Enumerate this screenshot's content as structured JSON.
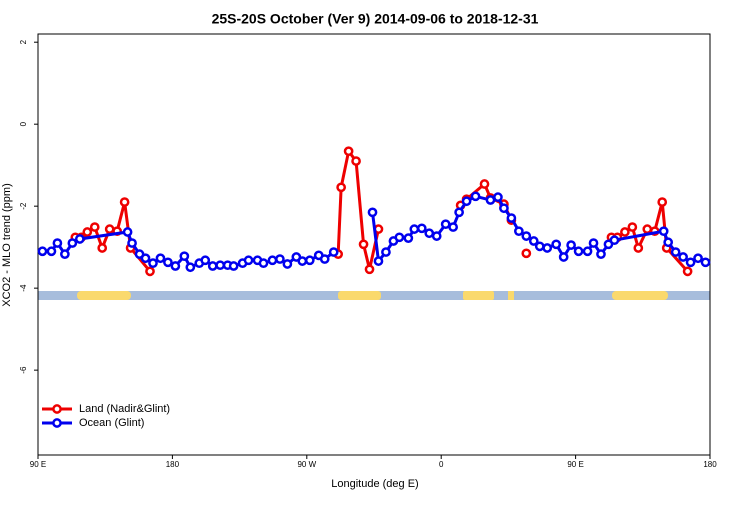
{
  "chart_data": {
    "type": "line",
    "title": "25S-20S October (Ver 9)   2014-09-06 to 2018-12-31",
    "x_label": "Longitude (deg E)",
    "y_label": "XCO2 - MLO trend (ppm)",
    "xlim": [
      90,
      540
    ],
    "ylim": [
      -8.07,
      2.2
    ],
    "xticks": [
      {
        "value": 90,
        "label": "90 E"
      },
      180,
      {
        "value": 270,
        "label": "90 W"
      },
      {
        "value": 360,
        "label": "0"
      },
      {
        "value": 450,
        "label": "90 E"
      },
      {
        "value": 540,
        "label": "180"
      }
    ],
    "yticks": [
      2,
      0,
      -2,
      -4,
      -6
    ],
    "legend": "bottom-left",
    "series": [
      {
        "name": "Land (Nadir&Glint)",
        "color": "#ee0000",
        "x": [
          115,
          119,
          123,
          128,
          133,
          138,
          143,
          148,
          152,
          165,
          200,
          291,
          293,
          298,
          303,
          308,
          312,
          318,
          340,
          373,
          377,
          389,
          393,
          402,
          407,
          412,
          417,
          440,
          474,
          478,
          483,
          488,
          492,
          498,
          503,
          508,
          511,
          525
        ],
        "values": [
          -2.76,
          -2.76,
          -2.63,
          -2.51,
          -3.02,
          -2.56,
          -2.61,
          -1.9,
          -3.02,
          -3.59,
          null,
          -3.17,
          -1.54,
          -0.66,
          -0.9,
          -2.93,
          -3.54,
          -2.56,
          null,
          -1.98,
          -1.83,
          -1.46,
          -1.8,
          -1.95,
          -2.34,
          null,
          -3.15,
          null,
          -2.76,
          -2.76,
          -2.63,
          -2.51,
          -3.02,
          -2.56,
          -2.61,
          -1.9,
          -3.02,
          -3.59
        ]
      },
      {
        "name": "Ocean (Glint)",
        "color": "#0000ee",
        "x": [
          93,
          99,
          103,
          108,
          113,
          118,
          150,
          153,
          158,
          162,
          167,
          172,
          177,
          182,
          188,
          192,
          198,
          202,
          207,
          212,
          217,
          221,
          227,
          231,
          237,
          241,
          247,
          252,
          257,
          263,
          267,
          272,
          278,
          282,
          288,
          300,
          314,
          318,
          323,
          328,
          332,
          338,
          342,
          347,
          352,
          357,
          363,
          368,
          372,
          377,
          383,
          393,
          398,
          402,
          407,
          412,
          417,
          422,
          426,
          431,
          437,
          442,
          447,
          452,
          458,
          462,
          467,
          472,
          476,
          509,
          512,
          517,
          522,
          527,
          532,
          537
        ],
        "values": [
          -3.1,
          -3.1,
          -2.9,
          -3.17,
          -2.9,
          -2.8,
          -2.63,
          -2.9,
          -3.17,
          -3.27,
          -3.39,
          -3.27,
          -3.37,
          -3.46,
          -3.22,
          -3.49,
          -3.39,
          -3.32,
          -3.46,
          -3.44,
          -3.44,
          -3.46,
          -3.39,
          -3.32,
          -3.32,
          -3.39,
          -3.32,
          -3.29,
          -3.41,
          -3.24,
          -3.34,
          -3.32,
          -3.2,
          -3.29,
          -3.12,
          null,
          -2.15,
          -3.34,
          -3.12,
          -2.85,
          -2.76,
          -2.78,
          -2.56,
          -2.54,
          -2.66,
          -2.73,
          -2.44,
          -2.51,
          -2.15,
          -1.88,
          -1.76,
          -1.85,
          -1.78,
          -2.05,
          -2.29,
          -2.61,
          -2.73,
          -2.85,
          -2.98,
          -3.02,
          -2.93,
          -3.24,
          -2.95,
          -3.1,
          -3.1,
          -2.9,
          -3.17,
          -2.93,
          -2.83,
          -2.61,
          -2.88,
          -3.12,
          -3.24,
          -3.37,
          -3.27,
          -3.37
        ]
      }
    ]
  }
}
